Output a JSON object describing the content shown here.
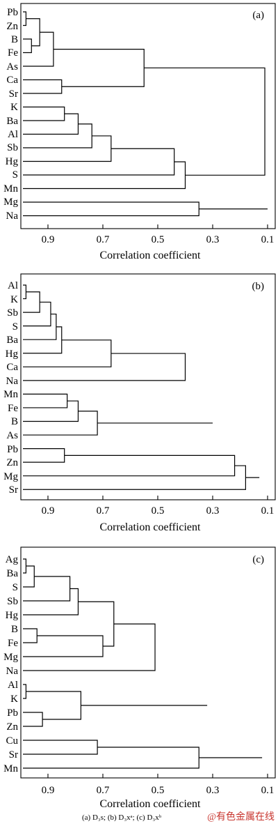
{
  "figure": {
    "caption": "(a) D₃s; (b) D₃xᵃ; (c) D₃xᵇ",
    "watermark": "@有色金属在线"
  },
  "chart_data": [
    {
      "type": "dendrogram",
      "panel_label": "(a)",
      "xlabel": "Correlation coefficient",
      "xlim": [
        1.0,
        0.07
      ],
      "xticks": [
        0.9,
        0.7,
        0.5,
        0.3,
        0.1
      ],
      "xtick_labels": [
        "0.9",
        "0.7",
        "0.5",
        "0.3",
        "0.1"
      ],
      "leaves": [
        "Pb",
        "Zn",
        "B",
        "Fe",
        "As",
        "Ca",
        "Sr",
        "K",
        "Ba",
        "Al",
        "Sb",
        "Hg",
        "S",
        "Mn",
        "Mg",
        "Na"
      ],
      "merges": [
        {
          "left": "Pb",
          "right": "Zn",
          "height": 0.98
        },
        {
          "left": "B",
          "right": "Fe",
          "height": 0.96
        },
        {
          "left": "Pb-Zn",
          "right": "B-Fe",
          "height": 0.93
        },
        {
          "left": "Pb-Zn-B-Fe",
          "right": "As",
          "height": 0.88
        },
        {
          "left": "Ca",
          "right": "Sr",
          "height": 0.85
        },
        {
          "left": "Pb-Zn-B-Fe-As",
          "right": "Ca-Sr",
          "height": 0.55
        },
        {
          "left": "K",
          "right": "Ba",
          "height": 0.84
        },
        {
          "left": "K-Ba",
          "right": "Al",
          "height": 0.79
        },
        {
          "left": "K-Ba-Al",
          "right": "Sb",
          "height": 0.74
        },
        {
          "left": "K-Ba-Al-Sb",
          "right": "Hg",
          "height": 0.67
        },
        {
          "left": "K-Ba-Al-Sb-Hg",
          "right": "S",
          "height": 0.44
        },
        {
          "left": "K-Ba-Al-Sb-Hg-S",
          "right": "Mn",
          "height": 0.4
        },
        {
          "left": "Pb-Zn-B-Fe-As-Ca-Sr",
          "right": "K-Ba-Al-Sb-Hg-S-Mn",
          "height": 0.11
        },
        {
          "left": "Mg",
          "right": "Na",
          "height": 0.35
        },
        {
          "left": "cluster-1",
          "right": "Mg-Na",
          "height": 0.1
        }
      ]
    },
    {
      "type": "dendrogram",
      "panel_label": "(b)",
      "xlabel": "Correlation coefficient",
      "xlim": [
        1.0,
        0.07
      ],
      "xticks": [
        0.9,
        0.7,
        0.5,
        0.3,
        0.1
      ],
      "xtick_labels": [
        "0.9",
        "0.7",
        "0.5",
        "0.3",
        "0.1"
      ],
      "leaves": [
        "Al",
        "K",
        "Sb",
        "S",
        "Ba",
        "Hg",
        "Ca",
        "Na",
        "Mn",
        "Fe",
        "B",
        "As",
        "Pb",
        "Zn",
        "Mg",
        "Sr"
      ],
      "merges": [
        {
          "left": "Al",
          "right": "K",
          "height": 0.98
        },
        {
          "left": "Al-K",
          "right": "Sb",
          "height": 0.93
        },
        {
          "left": "Al-K-Sb",
          "right": "S",
          "height": 0.89
        },
        {
          "left": "Al-K-Sb-S",
          "right": "Ba",
          "height": 0.87
        },
        {
          "left": "Al-K-Sb-S-Ba",
          "right": "Hg",
          "height": 0.85
        },
        {
          "left": "Al-K-Sb-S-Ba-Hg",
          "right": "Ca",
          "height": 0.67
        },
        {
          "left": "Al-K-Sb-S-Ba-Hg-Ca",
          "right": "Na",
          "height": 0.4
        },
        {
          "left": "Mn",
          "right": "Fe",
          "height": 0.83
        },
        {
          "left": "Mn-Fe",
          "right": "B",
          "height": 0.79
        },
        {
          "left": "Mn-Fe-B",
          "right": "As",
          "height": 0.72
        },
        {
          "left": "Al…Na",
          "right": "Mn-Fe-B-As",
          "height": 0.3
        },
        {
          "left": "Pb",
          "right": "Zn",
          "height": 0.84
        },
        {
          "left": "Pb-Zn",
          "right": "Mg",
          "height": 0.22
        },
        {
          "left": "Pb-Zn-Mg",
          "right": "Sr",
          "height": 0.18
        },
        {
          "left": "cluster-1",
          "right": "Pb-Zn-Mg-Sr",
          "height": 0.13
        }
      ]
    },
    {
      "type": "dendrogram",
      "panel_label": "(c)",
      "xlabel": "Correlation coefficient",
      "xlim": [
        1.0,
        0.07
      ],
      "xticks": [
        0.9,
        0.7,
        0.5,
        0.3,
        0.1
      ],
      "xtick_labels": [
        "0.9",
        "0.7",
        "0.5",
        "0.3",
        "0.1"
      ],
      "leaves": [
        "Ag",
        "Ba",
        "S",
        "Sb",
        "Hg",
        "B",
        "Fe",
        "Mg",
        "Na",
        "Al",
        "K",
        "Pb",
        "Zn",
        "Cu",
        "Sr",
        "Mn"
      ],
      "merges": [
        {
          "left": "Ag",
          "right": "Ba",
          "height": 0.98
        },
        {
          "left": "Ag-Ba",
          "right": "S",
          "height": 0.95
        },
        {
          "left": "Ag-Ba-S",
          "right": "Sb",
          "height": 0.82
        },
        {
          "left": "Ag-Ba-S-Sb",
          "right": "Hg",
          "height": 0.79
        },
        {
          "left": "B",
          "right": "Fe",
          "height": 0.94
        },
        {
          "left": "B-Fe",
          "right": "Mg",
          "height": 0.7
        },
        {
          "left": "Ag-Ba-S-Sb-Hg",
          "right": "B-Fe-Mg",
          "height": 0.66
        },
        {
          "left": "Ag…Mg",
          "right": "Na",
          "height": 0.51
        },
        {
          "left": "Al",
          "right": "K",
          "height": 0.98
        },
        {
          "left": "Pb",
          "right": "Zn",
          "height": 0.92
        },
        {
          "left": "Al-K",
          "right": "Pb-Zn",
          "height": 0.78
        },
        {
          "left": "Ag…Na",
          "right": "Al-K-Pb-Zn",
          "height": 0.32
        },
        {
          "left": "Cu",
          "right": "Sr",
          "height": 0.72
        },
        {
          "left": "Cu-Sr",
          "right": "Mn",
          "height": 0.35
        },
        {
          "left": "cluster-1",
          "right": "Cu-Sr-Mn",
          "height": 0.12
        }
      ]
    }
  ]
}
